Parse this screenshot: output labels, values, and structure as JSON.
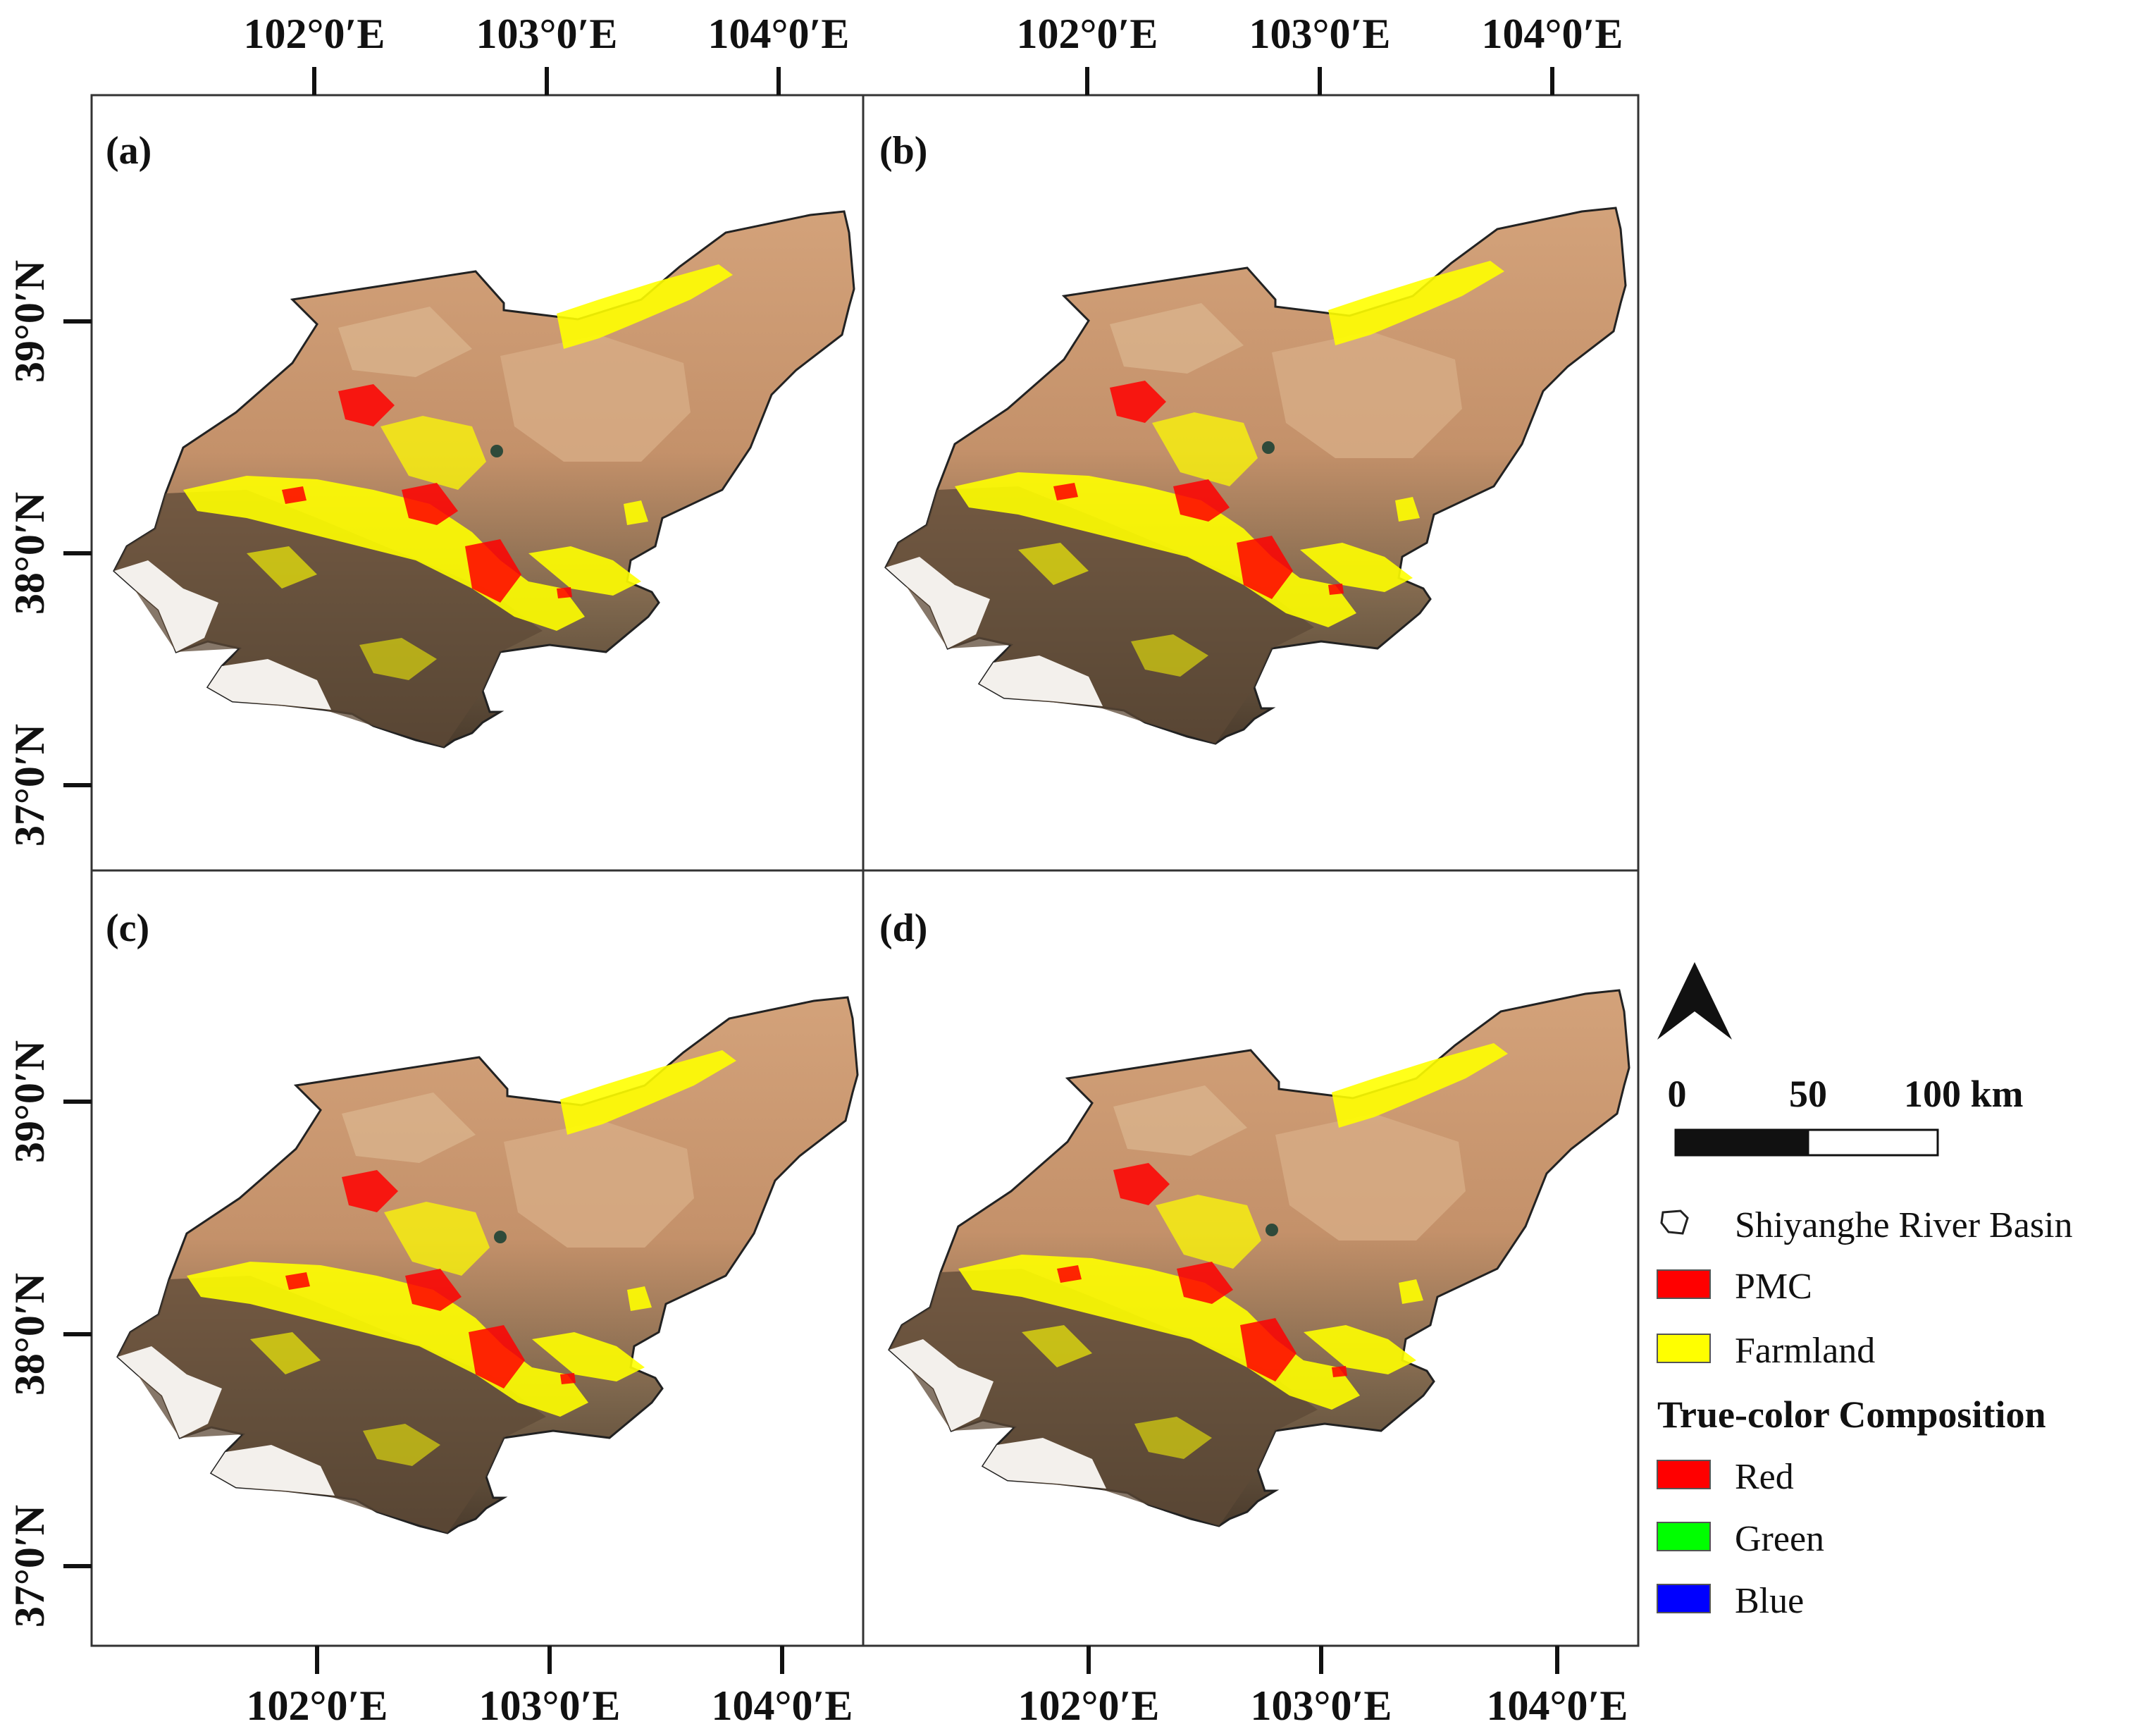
{
  "figure": {
    "panels": [
      {
        "label": "(a)"
      },
      {
        "label": "(b)"
      },
      {
        "label": "(c)"
      },
      {
        "label": "(d)"
      }
    ],
    "lon_ticks": [
      "102°0′E",
      "103°0′E",
      "104°0′E"
    ],
    "lat_ticks": [
      "39°0′N",
      "38°0′N",
      "37°0′N"
    ]
  },
  "legend": {
    "scale_labels": [
      "0",
      "50",
      "100 km"
    ],
    "basin_label": "Shiyanghe River Basin",
    "pmc_label": "PMC",
    "farmland_label": "Farmland",
    "composition_title": "True-color Composition",
    "red_label": "Red",
    "green_label": "Green",
    "blue_label": "Blue"
  },
  "colors": {
    "pmc": "#ff0000",
    "farmland": "#ffff00",
    "red_band": "#ff0000",
    "green_band": "#00ff00",
    "blue_band": "#0000ff",
    "desert": "#c99768",
    "mountain": "#6f5a44",
    "snow": "#f3f0ec"
  }
}
